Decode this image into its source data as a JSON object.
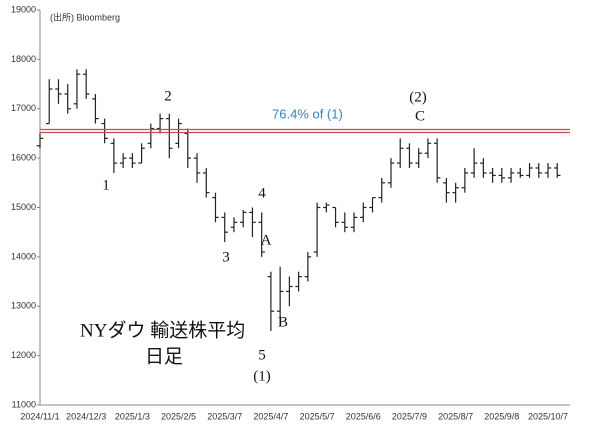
{
  "chart_data": {
    "type": "ohlc",
    "source": "(出所) Bloomberg",
    "title": "NYダウ 輸送株平均",
    "subtitle": "日足",
    "color": "#222222",
    "categories": [
      "2024/11/1",
      null,
      null,
      null,
      null,
      "2024/12/3",
      null,
      null,
      null,
      null,
      "2025/1/3",
      null,
      null,
      null,
      null,
      "2025/2/5",
      null,
      null,
      null,
      null,
      "2025/3/7",
      null,
      null,
      null,
      null,
      "2025/4/7",
      null,
      null,
      null,
      null,
      "2025/5/7",
      null,
      null,
      null,
      null,
      "2025/6/6",
      null,
      null,
      null,
      null,
      "2025/7/9",
      null,
      null,
      null,
      null,
      "2025/8/7",
      null,
      null,
      null,
      null,
      "2025/9/8",
      null,
      null,
      null,
      null,
      "2025/10/7",
      null
    ],
    "open": [
      16250,
      16700,
      17400,
      17300,
      17100,
      17700,
      17200,
      16700,
      16300,
      15900,
      16000,
      15900,
      16300,
      16600,
      16800,
      16300,
      16500,
      16000,
      15700,
      15200,
      14800,
      14600,
      14700,
      14900,
      14700,
      13600,
      12900,
      13300,
      13400,
      13600,
      14100,
      15000,
      15000,
      14700,
      14600,
      14800,
      15000,
      15200,
      15500,
      15900,
      16200,
      15900,
      16100,
      16300,
      15500,
      15300,
      15400,
      15700,
      15900,
      15700,
      15650,
      15600,
      15700,
      15650,
      15800,
      15700,
      15800
    ],
    "high": [
      16500,
      17600,
      17600,
      17500,
      17800,
      17800,
      17300,
      16800,
      16400,
      16100,
      16100,
      16300,
      16700,
      16900,
      16900,
      16800,
      16600,
      16100,
      15800,
      15300,
      14900,
      14800,
      14950,
      15000,
      14900,
      13700,
      13800,
      13600,
      13700,
      14100,
      15100,
      15100,
      15000,
      14900,
      14900,
      15100,
      15200,
      15600,
      16000,
      16400,
      16300,
      16200,
      16400,
      16400,
      15600,
      15500,
      15800,
      16200,
      16000,
      15800,
      15800,
      15800,
      15800,
      15900,
      15900,
      15900,
      15900
    ],
    "low": [
      16200,
      16700,
      17100,
      16900,
      17000,
      17200,
      16700,
      16300,
      15700,
      15800,
      15800,
      15900,
      16200,
      16500,
      16000,
      16200,
      15800,
      15500,
      15200,
      14700,
      14300,
      14500,
      14600,
      14400,
      14000,
      12500,
      12600,
      13000,
      13300,
      13500,
      14000,
      14900,
      14600,
      14500,
      14500,
      14700,
      14900,
      15100,
      15400,
      15800,
      15800,
      15800,
      16000,
      15500,
      15100,
      15100,
      15300,
      15600,
      15600,
      15500,
      15500,
      15500,
      15600,
      15600,
      15600,
      15600,
      15600
    ],
    "close": [
      16400,
      17400,
      17300,
      17000,
      17700,
      17300,
      16800,
      16400,
      15900,
      16000,
      15900,
      16200,
      16600,
      16800,
      16200,
      16700,
      16000,
      15700,
      15300,
      14800,
      14500,
      14700,
      14900,
      14700,
      14100,
      12900,
      13300,
      13400,
      13600,
      14000,
      15000,
      15050,
      14700,
      14600,
      14800,
      15000,
      15200,
      15500,
      15900,
      16200,
      15900,
      16100,
      16300,
      15600,
      15300,
      15400,
      15700,
      15900,
      15700,
      15650,
      15600,
      15700,
      15650,
      15800,
      15700,
      15800,
      15650
    ],
    "ylim": [
      11000,
      19000
    ],
    "yticks": [
      11000,
      12000,
      13000,
      14000,
      15000,
      16000,
      17000,
      18000,
      19000
    ],
    "grid": false,
    "hline": {
      "value": 16550,
      "label": "76.4% of (1)",
      "color": "#c0504d",
      "label_color": "#2e86c1"
    },
    "annotations": [
      "1",
      "2",
      "3",
      "4",
      "5",
      "(1)",
      "A",
      "B",
      "(2)",
      "C"
    ]
  }
}
